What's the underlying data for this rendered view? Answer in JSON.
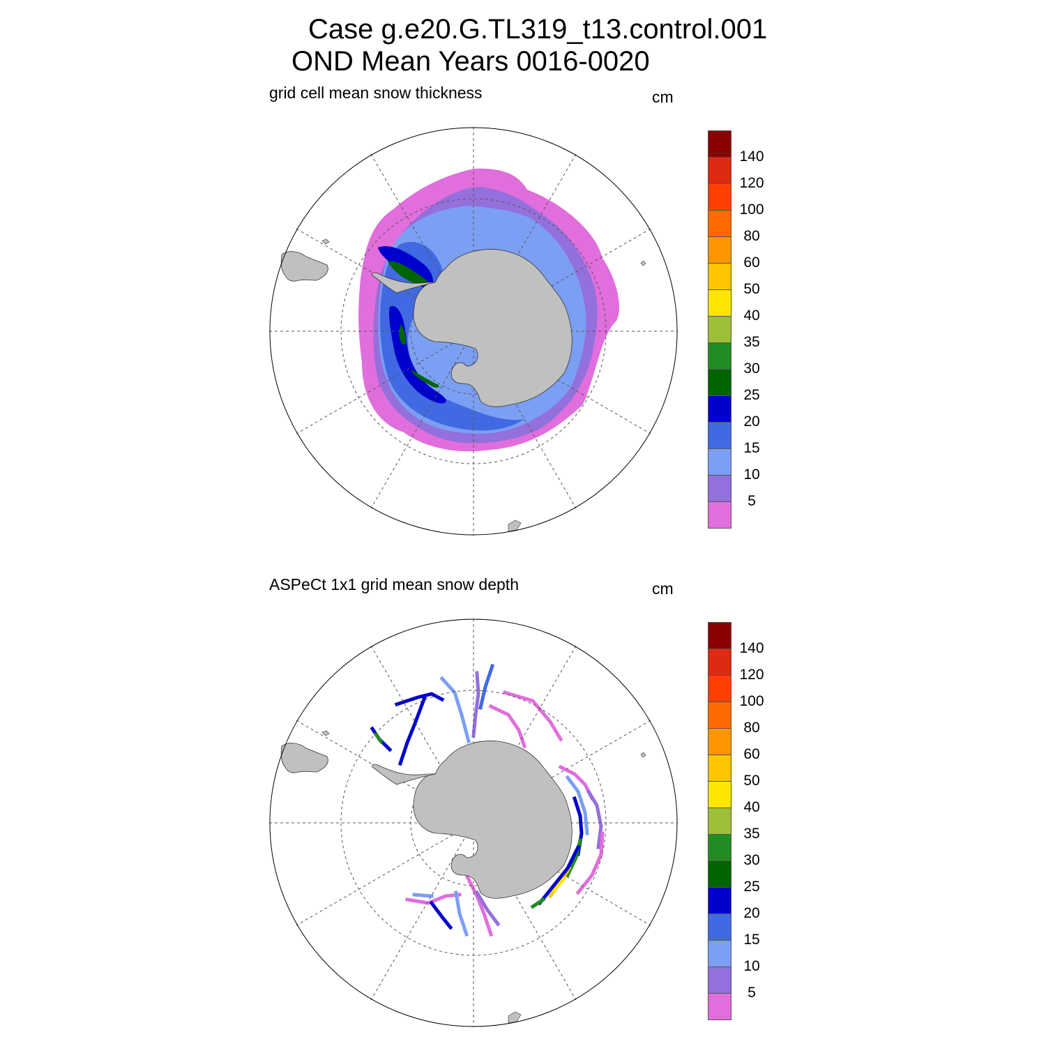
{
  "header": {
    "title_line1": "Case g.e20.G.TL319_t13.control.001",
    "title_line2": "OND Mean   Years 0016-0020"
  },
  "panels": [
    {
      "subtitle": "grid cell mean snow thickness",
      "units": "cm"
    },
    {
      "subtitle": "ASPeCt 1x1 grid mean snow depth",
      "units": "cm"
    }
  ],
  "colorbar": {
    "labels": [
      "140",
      "120",
      "100",
      "80",
      "60",
      "50",
      "40",
      "35",
      "30",
      "25",
      "20",
      "15",
      "10",
      "5"
    ],
    "colors": [
      "#8b0000",
      "#dd2a10",
      "#ff4000",
      "#ff6a00",
      "#ff9600",
      "#ffc400",
      "#ffe600",
      "#9cc03a",
      "#228b22",
      "#006400",
      "#0000cd",
      "#4169e1",
      "#7b9ff2",
      "#9370db",
      "#e06edc"
    ]
  },
  "map_colors": {
    "land": "#c0c0c0",
    "ocean": "#ffffff",
    "grid": "#555555"
  }
}
